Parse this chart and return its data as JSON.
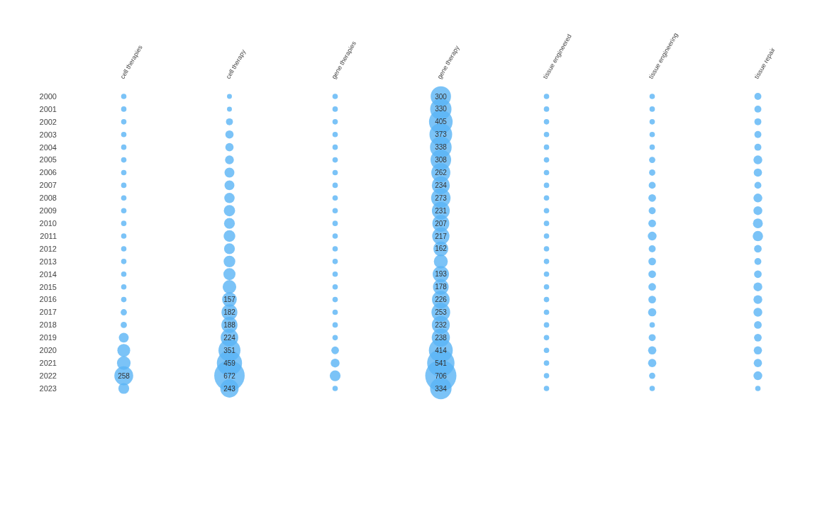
{
  "chart_data": {
    "type": "bubble",
    "categories": [
      "cell therapies",
      "cell therapy",
      "gene therapies",
      "gene therapy",
      "tissue engineered",
      "tissue engineering",
      "tissue repair"
    ],
    "ylim": [
      2023,
      2000
    ],
    "yticks": [
      2000,
      2001,
      2002,
      2003,
      2004,
      2005,
      2006,
      2007,
      2008,
      2009,
      2010,
      2011,
      2012,
      2013,
      2014,
      2015,
      2016,
      2017,
      2018,
      2019,
      2020,
      2021,
      2022,
      2023
    ],
    "series": [
      {
        "color": "#5ab4f5",
        "x": [
          "cell therapies",
          "cell therapies",
          "cell therapies",
          "cell therapies",
          "cell therapies",
          "cell therapies",
          "cell therapies",
          "cell therapies",
          "cell therapies",
          "cell therapies",
          "cell therapies",
          "cell therapies",
          "cell therapies",
          "cell therapies",
          "cell therapies",
          "cell therapies",
          "cell therapies",
          "cell therapies",
          "cell therapies",
          "cell therapies",
          "cell therapies",
          "cell therapies",
          "cell therapies",
          "cell therapies"
        ],
        "values": [
          2000,
          2001,
          2002,
          2003,
          2004,
          2005,
          2006,
          2007,
          2008,
          2009,
          2010,
          2011,
          2012,
          2013,
          2014,
          2015,
          2016,
          2017,
          2018,
          2019,
          2020,
          2021,
          2022,
          2023
        ],
        "sizes": [
          0.03,
          0.03,
          0.03,
          0.03,
          0.03,
          0.03,
          0.03,
          0.03,
          0.03,
          0.03,
          0.03,
          0.03,
          0.03,
          0.03,
          0.03,
          0.03,
          0.03,
          0.04,
          0.04,
          0.1,
          0.17,
          0.19,
          0.365,
          0.12
        ]
      },
      {
        "color": "#5ab4f5",
        "x": [
          "cell therapy",
          "cell therapy",
          "cell therapy",
          "cell therapy",
          "cell therapy",
          "cell therapy",
          "cell therapy",
          "cell therapy",
          "cell therapy",
          "cell therapy",
          "cell therapy",
          "cell therapy",
          "cell therapy",
          "cell therapy",
          "cell therapy",
          "cell therapy",
          "cell therapy",
          "cell therapy",
          "cell therapy",
          "cell therapy",
          "cell therapy",
          "cell therapy",
          "cell therapy",
          "cell therapy"
        ],
        "values": [
          2000,
          2001,
          2002,
          2003,
          2004,
          2005,
          2006,
          2007,
          2008,
          2009,
          2010,
          2011,
          2012,
          2013,
          2014,
          2015,
          2016,
          2017,
          2018,
          2019,
          2020,
          2021,
          2022,
          2023
        ],
        "sizes": [
          0.025,
          0.025,
          0.05,
          0.07,
          0.07,
          0.08,
          0.1,
          0.1,
          0.11,
          0.13,
          0.12,
          0.14,
          0.12,
          0.14,
          0.15,
          0.19,
          0.222,
          0.258,
          0.266,
          0.317,
          0.497,
          0.65,
          0.952,
          0.344
        ]
      },
      {
        "color": "#5ab4f5",
        "x": [
          "gene therapies",
          "gene therapies",
          "gene therapies",
          "gene therapies",
          "gene therapies",
          "gene therapies",
          "gene therapies",
          "gene therapies",
          "gene therapies",
          "gene therapies",
          "gene therapies",
          "gene therapies",
          "gene therapies",
          "gene therapies",
          "gene therapies",
          "gene therapies",
          "gene therapies",
          "gene therapies",
          "gene therapies",
          "gene therapies",
          "gene therapies",
          "gene therapies",
          "gene therapies",
          "gene therapies"
        ],
        "values": [
          2000,
          2001,
          2002,
          2003,
          2004,
          2005,
          2006,
          2007,
          2008,
          2009,
          2010,
          2011,
          2012,
          2013,
          2014,
          2015,
          2016,
          2017,
          2018,
          2019,
          2020,
          2021,
          2022,
          2023
        ],
        "sizes": [
          0.03,
          0.03,
          0.03,
          0.03,
          0.03,
          0.03,
          0.03,
          0.03,
          0.03,
          0.03,
          0.03,
          0.03,
          0.03,
          0.03,
          0.03,
          0.03,
          0.03,
          0.03,
          0.03,
          0.03,
          0.06,
          0.08,
          0.12,
          0.03
        ]
      },
      {
        "color": "#5ab4f5",
        "x": [
          "gene therapy",
          "gene therapy",
          "gene therapy",
          "gene therapy",
          "gene therapy",
          "gene therapy",
          "gene therapy",
          "gene therapy",
          "gene therapy",
          "gene therapy",
          "gene therapy",
          "gene therapy",
          "gene therapy",
          "gene therapy",
          "gene therapy",
          "gene therapy",
          "gene therapy",
          "gene therapy",
          "gene therapy",
          "gene therapy",
          "gene therapy",
          "gene therapy",
          "gene therapy",
          "gene therapy"
        ],
        "values": [
          2000,
          2001,
          2002,
          2003,
          2004,
          2005,
          2006,
          2007,
          2008,
          2009,
          2010,
          2011,
          2012,
          2013,
          2014,
          2015,
          2016,
          2017,
          2018,
          2019,
          2020,
          2021,
          2022,
          2023
        ],
        "sizes": [
          0.425,
          0.467,
          0.574,
          0.528,
          0.479,
          0.436,
          0.371,
          0.331,
          0.387,
          0.327,
          0.293,
          0.307,
          0.229,
          0.2,
          0.273,
          0.252,
          0.32,
          0.358,
          0.329,
          0.337,
          0.586,
          0.766,
          1,
          0.473
        ]
      },
      {
        "color": "#5ab4f5",
        "x": [
          "tissue engineered",
          "tissue engineered",
          "tissue engineered",
          "tissue engineered",
          "tissue engineered",
          "tissue engineered",
          "tissue engineered",
          "tissue engineered",
          "tissue engineered",
          "tissue engineered",
          "tissue engineered",
          "tissue engineered",
          "tissue engineered",
          "tissue engineered",
          "tissue engineered",
          "tissue engineered",
          "tissue engineered",
          "tissue engineered",
          "tissue engineered",
          "tissue engineered",
          "tissue engineered",
          "tissue engineered",
          "tissue engineered",
          "tissue engineered"
        ],
        "values": [
          2000,
          2001,
          2002,
          2003,
          2004,
          2005,
          2006,
          2007,
          2008,
          2009,
          2010,
          2011,
          2012,
          2013,
          2014,
          2015,
          2016,
          2017,
          2018,
          2019,
          2020,
          2021,
          2022,
          2023
        ],
        "sizes": [
          0.03,
          0.03,
          0.03,
          0.03,
          0.03,
          0.03,
          0.03,
          0.03,
          0.03,
          0.03,
          0.03,
          0.03,
          0.03,
          0.03,
          0.03,
          0.03,
          0.03,
          0.03,
          0.03,
          0.03,
          0.03,
          0.03,
          0.03,
          0.03
        ]
      },
      {
        "color": "#5ab4f5",
        "x": [
          "tissue engineering",
          "tissue engineering",
          "tissue engineering",
          "tissue engineering",
          "tissue engineering",
          "tissue engineering",
          "tissue engineering",
          "tissue engineering",
          "tissue engineering",
          "tissue engineering",
          "tissue engineering",
          "tissue engineering",
          "tissue engineering",
          "tissue engineering",
          "tissue engineering",
          "tissue engineering",
          "tissue engineering",
          "tissue engineering",
          "tissue engineering",
          "tissue engineering",
          "tissue engineering",
          "tissue engineering",
          "tissue engineering",
          "tissue engineering"
        ],
        "values": [
          2000,
          2001,
          2002,
          2003,
          2004,
          2005,
          2006,
          2007,
          2008,
          2009,
          2010,
          2011,
          2012,
          2013,
          2014,
          2015,
          2016,
          2017,
          2018,
          2019,
          2020,
          2021,
          2022,
          2023
        ],
        "sizes": [
          0.03,
          0.03,
          0.03,
          0.03,
          0.03,
          0.04,
          0.04,
          0.05,
          0.06,
          0.05,
          0.06,
          0.08,
          0.05,
          0.06,
          0.06,
          0.06,
          0.06,
          0.07,
          0.03,
          0.05,
          0.07,
          0.07,
          0.04,
          0.03
        ]
      },
      {
        "color": "#5ab4f5",
        "x": [
          "tissue repair",
          "tissue repair",
          "tissue repair",
          "tissue repair",
          "tissue repair",
          "tissue repair",
          "tissue repair",
          "tissue repair",
          "tissue repair",
          "tissue repair",
          "tissue repair",
          "tissue repair",
          "tissue repair",
          "tissue repair",
          "tissue repair",
          "tissue repair",
          "tissue repair",
          "tissue repair",
          "tissue repair",
          "tissue repair",
          "tissue repair",
          "tissue repair",
          "tissue repair",
          "tissue repair"
        ],
        "values": [
          2000,
          2001,
          2002,
          2003,
          2004,
          2005,
          2006,
          2007,
          2008,
          2009,
          2010,
          2011,
          2012,
          2013,
          2014,
          2015,
          2016,
          2017,
          2018,
          2019,
          2020,
          2021,
          2022,
          2023
        ],
        "sizes": [
          0.05,
          0.05,
          0.05,
          0.05,
          0.05,
          0.08,
          0.07,
          0.05,
          0.08,
          0.08,
          0.1,
          0.11,
          0.06,
          0.05,
          0.06,
          0.08,
          0.08,
          0.08,
          0.06,
          0.06,
          0.07,
          0.07,
          0.08,
          0.03
        ]
      }
    ],
    "annotations": [
      {
        "text": "258",
        "x": "cell therapies",
        "y": 2022
      },
      {
        "text": "157",
        "x": "cell therapy",
        "y": 2016
      },
      {
        "text": "182",
        "x": "cell therapy",
        "y": 2017
      },
      {
        "text": "188",
        "x": "cell therapy",
        "y": 2018
      },
      {
        "text": "224",
        "x": "cell therapy",
        "y": 2019
      },
      {
        "text": "351",
        "x": "cell therapy",
        "y": 2020
      },
      {
        "text": "459",
        "x": "cell therapy",
        "y": 2021
      },
      {
        "text": "672",
        "x": "cell therapy",
        "y": 2022
      },
      {
        "text": "243",
        "x": "cell therapy",
        "y": 2023
      },
      {
        "text": "300",
        "x": "gene therapy",
        "y": 2000
      },
      {
        "text": "330",
        "x": "gene therapy",
        "y": 2001
      },
      {
        "text": "405",
        "x": "gene therapy",
        "y": 2002
      },
      {
        "text": "373",
        "x": "gene therapy",
        "y": 2003
      },
      {
        "text": "338",
        "x": "gene therapy",
        "y": 2004
      },
      {
        "text": "308",
        "x": "gene therapy",
        "y": 2005
      },
      {
        "text": "262",
        "x": "gene therapy",
        "y": 2006
      },
      {
        "text": "234",
        "x": "gene therapy",
        "y": 2007
      },
      {
        "text": "273",
        "x": "gene therapy",
        "y": 2008
      },
      {
        "text": "231",
        "x": "gene therapy",
        "y": 2009
      },
      {
        "text": "207",
        "x": "gene therapy",
        "y": 2010
      },
      {
        "text": "217",
        "x": "gene therapy",
        "y": 2011
      },
      {
        "text": "162",
        "x": "gene therapy",
        "y": 2012
      },
      {
        "text": "193",
        "x": "gene therapy",
        "y": 2014
      },
      {
        "text": "178",
        "x": "gene therapy",
        "y": 2015
      },
      {
        "text": "226",
        "x": "gene therapy",
        "y": 2016
      },
      {
        "text": "253",
        "x": "gene therapy",
        "y": 2017
      },
      {
        "text": "232",
        "x": "gene therapy",
        "y": 2018
      },
      {
        "text": "238",
        "x": "gene therapy",
        "y": 2019
      },
      {
        "text": "414",
        "x": "gene therapy",
        "y": 2020
      },
      {
        "text": "541",
        "x": "gene therapy",
        "y": 2021
      },
      {
        "text": "706",
        "x": "gene therapy",
        "y": 2022
      },
      {
        "text": "334",
        "x": "gene therapy",
        "y": 2023
      }
    ]
  }
}
